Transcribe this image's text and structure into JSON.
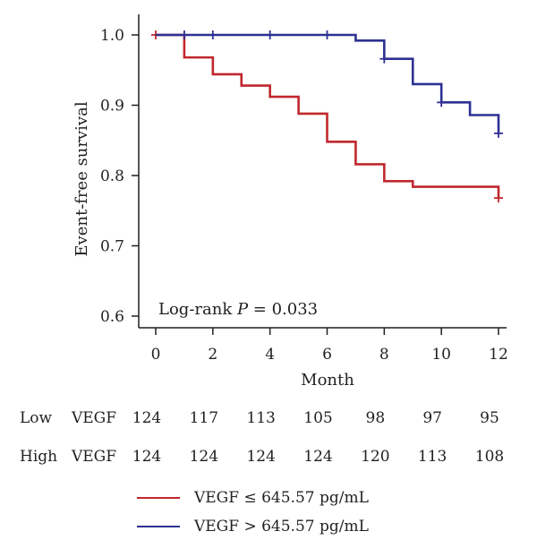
{
  "chart_data": {
    "type": "line",
    "step": true,
    "xlabel": "Month",
    "ylabel": "Event-free survival",
    "xlim": [
      0,
      12
    ],
    "ylim": [
      0.6,
      1.0
    ],
    "xticks": [
      0,
      2,
      4,
      6,
      8,
      10,
      12
    ],
    "yticks": [
      0.6,
      0.7,
      0.8,
      0.9,
      1.0
    ],
    "ytick_labels": [
      "0.6",
      "0.7",
      "0.8",
      "0.9",
      "1.0"
    ],
    "annotation": {
      "prefix": "Log-rank ",
      "p": "P",
      "suffix": " = 0.033"
    },
    "series": [
      {
        "name": "VEGF ≤ 645.57 pg/mL",
        "color": "#c1272d",
        "x": [
          0,
          1,
          2,
          3,
          4,
          5,
          6,
          7,
          8,
          9,
          10,
          11,
          12
        ],
        "y": [
          1.0,
          0.968,
          0.944,
          0.928,
          0.912,
          0.888,
          0.848,
          0.816,
          0.792,
          0.784,
          0.784,
          0.784,
          0.768
        ],
        "censor_x": [
          0,
          12
        ],
        "censor_y": [
          1.0,
          0.768
        ]
      },
      {
        "name": "VEGF > 645.57 pg/mL",
        "color": "#2e3192",
        "x": [
          0,
          1,
          2,
          3,
          4,
          5,
          6,
          7,
          8,
          9,
          10,
          11,
          12
        ],
        "y": [
          1.0,
          1.0,
          1.0,
          1.0,
          1.0,
          1.0,
          1.0,
          0.992,
          0.966,
          0.93,
          0.904,
          0.886,
          0.86
        ],
        "censor_x": [
          1,
          2,
          4,
          6,
          8,
          10,
          12
        ],
        "censor_y": [
          1.0,
          1.0,
          1.0,
          1.0,
          0.966,
          0.904,
          0.86
        ]
      }
    ]
  },
  "risk_table": {
    "rows": [
      {
        "group": "Low",
        "marker": "VEGF",
        "counts": [
          "124",
          "117",
          "113",
          "105",
          "98",
          "97",
          "95"
        ]
      },
      {
        "group": "High",
        "marker": "VEGF",
        "counts": [
          "124",
          "124",
          "124",
          "124",
          "120",
          "113",
          "108"
        ]
      }
    ]
  },
  "legend": [
    {
      "label": "VEGF ≤ 645.57 pg/mL",
      "color": "#c1272d"
    },
    {
      "label": "VEGF > 645.57 pg/mL",
      "color": "#2e3192"
    }
  ]
}
